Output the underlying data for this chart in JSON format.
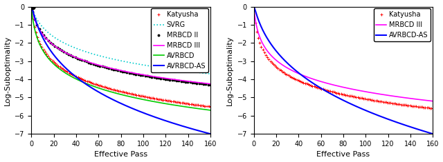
{
  "left_plot": {
    "xlabel": "Effective Pass",
    "ylabel": "Log-Suboptimality",
    "xlim": [
      0,
      160
    ],
    "ylim": [
      -7,
      0
    ],
    "yticks": [
      0,
      -1,
      -2,
      -3,
      -4,
      -5,
      -6,
      -7
    ],
    "xticks": [
      0,
      20,
      40,
      60,
      80,
      100,
      120,
      140,
      160
    ]
  },
  "right_plot": {
    "xlabel": "Effective Pass",
    "ylabel": "Log-Suboptimality",
    "xlim": [
      0,
      160
    ],
    "ylim": [
      -7,
      0
    ],
    "yticks": [
      0,
      -1,
      -2,
      -3,
      -4,
      -5,
      -6,
      -7
    ],
    "xticks": [
      0,
      20,
      40,
      60,
      80,
      100,
      120,
      140,
      160
    ]
  },
  "katyusha_color": "#ff0000",
  "svrg_color": "#00cccc",
  "mrbcd2_color": "#000000",
  "mrbcd3_color": "#ff00ff",
  "avrbcd_color": "#00cc00",
  "avrbcd_as_color": "#0000ff",
  "bg_color": "#ffffff",
  "legend_fontsize": 7,
  "axis_fontsize": 8,
  "tick_fontsize": 7,
  "marker_size": 3
}
